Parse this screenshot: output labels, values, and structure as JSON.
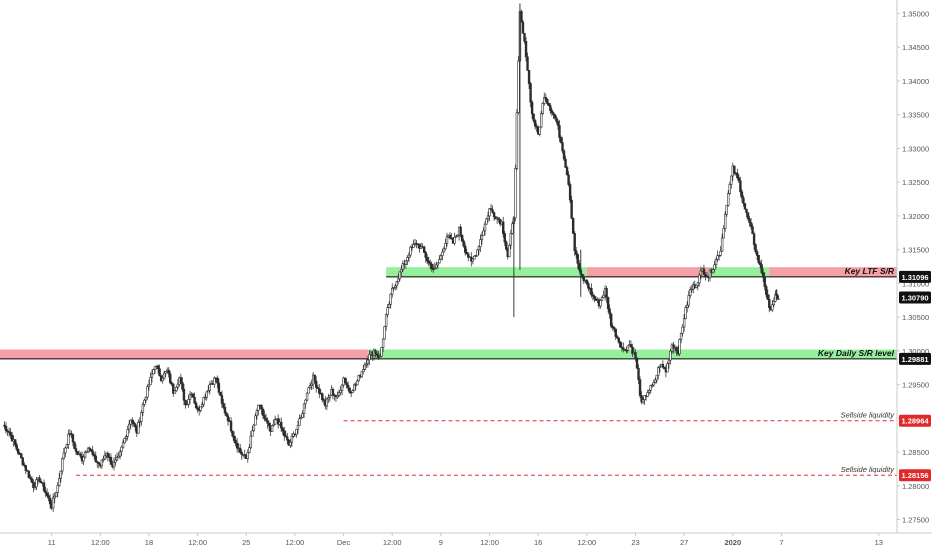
{
  "chart_data": {
    "type": "candlestick",
    "title": "",
    "xlabel": "",
    "ylabel": "",
    "ylim": [
      1.273,
      1.352
    ],
    "grid": false,
    "x_ticks": [
      {
        "label": "11",
        "t": 8
      },
      {
        "label": "12:00",
        "t": 16
      },
      {
        "label": "18",
        "t": 24
      },
      {
        "label": "12:00",
        "t": 32
      },
      {
        "label": "25",
        "t": 40
      },
      {
        "label": "12:00",
        "t": 48
      },
      {
        "label": "Dec",
        "t": 56
      },
      {
        "label": "12:00",
        "t": 64
      },
      {
        "label": "9",
        "t": 72
      },
      {
        "label": "12:00",
        "t": 80
      },
      {
        "label": "16",
        "t": 88
      },
      {
        "label": "12:00",
        "t": 96
      },
      {
        "label": "23",
        "t": 104
      },
      {
        "label": "27",
        "t": 112
      },
      {
        "label": "2020",
        "t": 120,
        "bold": true
      },
      {
        "label": "7",
        "t": 128
      },
      {
        "label": "13",
        "t": 144
      }
    ],
    "y_ticks": [
      1.275,
      1.28,
      1.285,
      1.29,
      1.295,
      1.3,
      1.305,
      1.31,
      1.315,
      1.32,
      1.325,
      1.33,
      1.335,
      1.34,
      1.345,
      1.35
    ],
    "y_tick_labels": [
      "1.27500",
      "1.28000",
      "1.28500",
      "1.29000",
      "1.29500",
      "1.30000",
      "1.30500",
      "1.31000",
      "1.31500",
      "1.32000",
      "1.32500",
      "1.33000",
      "1.33500",
      "1.34000",
      "1.34500",
      "1.35000"
    ],
    "path": [
      {
        "t": 0,
        "y": 1.289
      },
      {
        "t": 1,
        "y": 1.288
      },
      {
        "t": 2,
        "y": 1.286
      },
      {
        "t": 3,
        "y": 1.284
      },
      {
        "t": 4,
        "y": 1.282
      },
      {
        "t": 5,
        "y": 1.28
      },
      {
        "t": 6,
        "y": 1.281
      },
      {
        "t": 7,
        "y": 1.279
      },
      {
        "t": 8,
        "y": 1.277
      },
      {
        "t": 9,
        "y": 1.28
      },
      {
        "t": 10,
        "y": 1.285
      },
      {
        "t": 11,
        "y": 1.288
      },
      {
        "t": 12,
        "y": 1.285
      },
      {
        "t": 13,
        "y": 1.284
      },
      {
        "t": 14,
        "y": 1.286
      },
      {
        "t": 15,
        "y": 1.284
      },
      {
        "t": 16,
        "y": 1.283
      },
      {
        "t": 17,
        "y": 1.285
      },
      {
        "t": 18,
        "y": 1.283
      },
      {
        "t": 19,
        "y": 1.284
      },
      {
        "t": 20,
        "y": 1.287
      },
      {
        "t": 21,
        "y": 1.29
      },
      {
        "t": 22,
        "y": 1.288
      },
      {
        "t": 23,
        "y": 1.292
      },
      {
        "t": 24,
        "y": 1.295
      },
      {
        "t": 25,
        "y": 1.298
      },
      {
        "t": 26,
        "y": 1.296
      },
      {
        "t": 27,
        "y": 1.297
      },
      {
        "t": 28,
        "y": 1.294
      },
      {
        "t": 29,
        "y": 1.296
      },
      {
        "t": 30,
        "y": 1.292
      },
      {
        "t": 31,
        "y": 1.294
      },
      {
        "t": 32,
        "y": 1.291
      },
      {
        "t": 33,
        "y": 1.293
      },
      {
        "t": 34,
        "y": 1.295
      },
      {
        "t": 35,
        "y": 1.296
      },
      {
        "t": 36,
        "y": 1.292
      },
      {
        "t": 37,
        "y": 1.29
      },
      {
        "t": 38,
        "y": 1.287
      },
      {
        "t": 39,
        "y": 1.285
      },
      {
        "t": 40,
        "y": 1.284
      },
      {
        "t": 41,
        "y": 1.288
      },
      {
        "t": 42,
        "y": 1.292
      },
      {
        "t": 43,
        "y": 1.29
      },
      {
        "t": 44,
        "y": 1.288
      },
      {
        "t": 45,
        "y": 1.29
      },
      {
        "t": 46,
        "y": 1.288
      },
      {
        "t": 47,
        "y": 1.286
      },
      {
        "t": 48,
        "y": 1.288
      },
      {
        "t": 49,
        "y": 1.29
      },
      {
        "t": 50,
        "y": 1.294
      },
      {
        "t": 51,
        "y": 1.296
      },
      {
        "t": 52,
        "y": 1.294
      },
      {
        "t": 53,
        "y": 1.292
      },
      {
        "t": 54,
        "y": 1.294
      },
      {
        "t": 55,
        "y": 1.293
      },
      {
        "t": 56,
        "y": 1.296
      },
      {
        "t": 57,
        "y": 1.294
      },
      {
        "t": 58,
        "y": 1.295
      },
      {
        "t": 59,
        "y": 1.297
      },
      {
        "t": 60,
        "y": 1.299
      },
      {
        "t": 61,
        "y": 1.3
      },
      {
        "t": 62,
        "y": 1.299
      },
      {
        "t": 63,
        "y": 1.305
      },
      {
        "t": 64,
        "y": 1.309
      },
      {
        "t": 65,
        "y": 1.311
      },
      {
        "t": 66,
        "y": 1.313
      },
      {
        "t": 67,
        "y": 1.315
      },
      {
        "t": 68,
        "y": 1.316
      },
      {
        "t": 69,
        "y": 1.315
      },
      {
        "t": 70,
        "y": 1.313
      },
      {
        "t": 71,
        "y": 1.312
      },
      {
        "t": 72,
        "y": 1.314
      },
      {
        "t": 73,
        "y": 1.317
      },
      {
        "t": 74,
        "y": 1.316
      },
      {
        "t": 75,
        "y": 1.318
      },
      {
        "t": 76,
        "y": 1.315
      },
      {
        "t": 77,
        "y": 1.313
      },
      {
        "t": 78,
        "y": 1.315
      },
      {
        "t": 79,
        "y": 1.318
      },
      {
        "t": 80,
        "y": 1.321
      },
      {
        "t": 81,
        "y": 1.32
      },
      {
        "t": 82,
        "y": 1.319
      },
      {
        "t": 83,
        "y": 1.314
      },
      {
        "t": 84,
        "y": 1.32
      },
      {
        "t": 85,
        "y": 1.35
      },
      {
        "t": 86,
        "y": 1.344
      },
      {
        "t": 87,
        "y": 1.335
      },
      {
        "t": 88,
        "y": 1.332
      },
      {
        "t": 89,
        "y": 1.338
      },
      {
        "t": 90,
        "y": 1.336
      },
      {
        "t": 91,
        "y": 1.334
      },
      {
        "t": 92,
        "y": 1.33
      },
      {
        "t": 93,
        "y": 1.325
      },
      {
        "t": 94,
        "y": 1.315
      },
      {
        "t": 95,
        "y": 1.311
      },
      {
        "t": 96,
        "y": 1.31
      },
      {
        "t": 97,
        "y": 1.308
      },
      {
        "t": 98,
        "y": 1.307
      },
      {
        "t": 99,
        "y": 1.309
      },
      {
        "t": 100,
        "y": 1.304
      },
      {
        "t": 101,
        "y": 1.302
      },
      {
        "t": 102,
        "y": 1.3
      },
      {
        "t": 103,
        "y": 1.301
      },
      {
        "t": 104,
        "y": 1.299
      },
      {
        "t": 105,
        "y": 1.292
      },
      {
        "t": 106,
        "y": 1.294
      },
      {
        "t": 107,
        "y": 1.295
      },
      {
        "t": 108,
        "y": 1.298
      },
      {
        "t": 109,
        "y": 1.297
      },
      {
        "t": 110,
        "y": 1.301
      },
      {
        "t": 111,
        "y": 1.3
      },
      {
        "t": 112,
        "y": 1.305
      },
      {
        "t": 113,
        "y": 1.309
      },
      {
        "t": 114,
        "y": 1.31
      },
      {
        "t": 115,
        "y": 1.312
      },
      {
        "t": 116,
        "y": 1.311
      },
      {
        "t": 117,
        "y": 1.313
      },
      {
        "t": 118,
        "y": 1.315
      },
      {
        "t": 119,
        "y": 1.322
      },
      {
        "t": 120,
        "y": 1.327
      },
      {
        "t": 121,
        "y": 1.325
      },
      {
        "t": 122,
        "y": 1.321
      },
      {
        "t": 123,
        "y": 1.318
      },
      {
        "t": 124,
        "y": 1.314
      },
      {
        "t": 125,
        "y": 1.311
      },
      {
        "t": 126,
        "y": 1.306
      },
      {
        "t": 127,
        "y": 1.308
      },
      {
        "t": 127.5,
        "y": 1.3079
      }
    ],
    "zones": [
      {
        "name": "key-daily-zone-red",
        "t_start": -1,
        "t_end": 60,
        "y_low": 1.2988,
        "y_high": 1.3002,
        "color": "#f4a0a6"
      },
      {
        "name": "key-daily-zone-green",
        "t_start": 60,
        "t_end": 148,
        "y_low": 1.2988,
        "y_high": 1.3002,
        "color": "#96f09b"
      },
      {
        "name": "key-ltf-zone-green-left",
        "t_start": 63,
        "t_end": 96,
        "y_low": 1.311,
        "y_high": 1.3124,
        "color": "#96f09b"
      },
      {
        "name": "key-ltf-zone-red",
        "t_start": 96,
        "t_end": 116,
        "y_low": 1.311,
        "y_high": 1.3124,
        "color": "#f4a0a6"
      },
      {
        "name": "key-ltf-zone-green-right",
        "t_start": 116,
        "t_end": 126,
        "y_low": 1.311,
        "y_high": 1.3124,
        "color": "#96f09b"
      },
      {
        "name": "key-ltf-zone-red-right",
        "t_start": 126,
        "t_end": 148,
        "y_low": 1.311,
        "y_high": 1.3124,
        "color": "#f4a0a6"
      }
    ],
    "levels": [
      {
        "name": "key-ltf-line",
        "label": "Key LTF S/R",
        "value": 1.31096,
        "axis_label": "1.31096",
        "t_start": 63,
        "style": "solid",
        "color": "#000000",
        "bold": true
      },
      {
        "name": "key-daily-line",
        "label": "Key Daily S/R level",
        "value": 1.29881,
        "axis_label": "1.29881",
        "t_start": -1,
        "style": "solid",
        "color": "#000000",
        "bold": true
      },
      {
        "name": "sellside-upper-line",
        "label": "Sellside liquidity",
        "value": 1.28964,
        "axis_label": "1.28964",
        "t_start": 56,
        "style": "dashed",
        "color": "#e03030",
        "bold": false
      },
      {
        "name": "sellside-lower-line",
        "label": "Sellside liquidity",
        "value": 1.28156,
        "axis_label": "1.28156",
        "t_start": 12,
        "style": "dashed",
        "color": "#e03030",
        "bold": false
      }
    ],
    "last_price": {
      "value": 1.3079,
      "label": "1.30790"
    }
  }
}
